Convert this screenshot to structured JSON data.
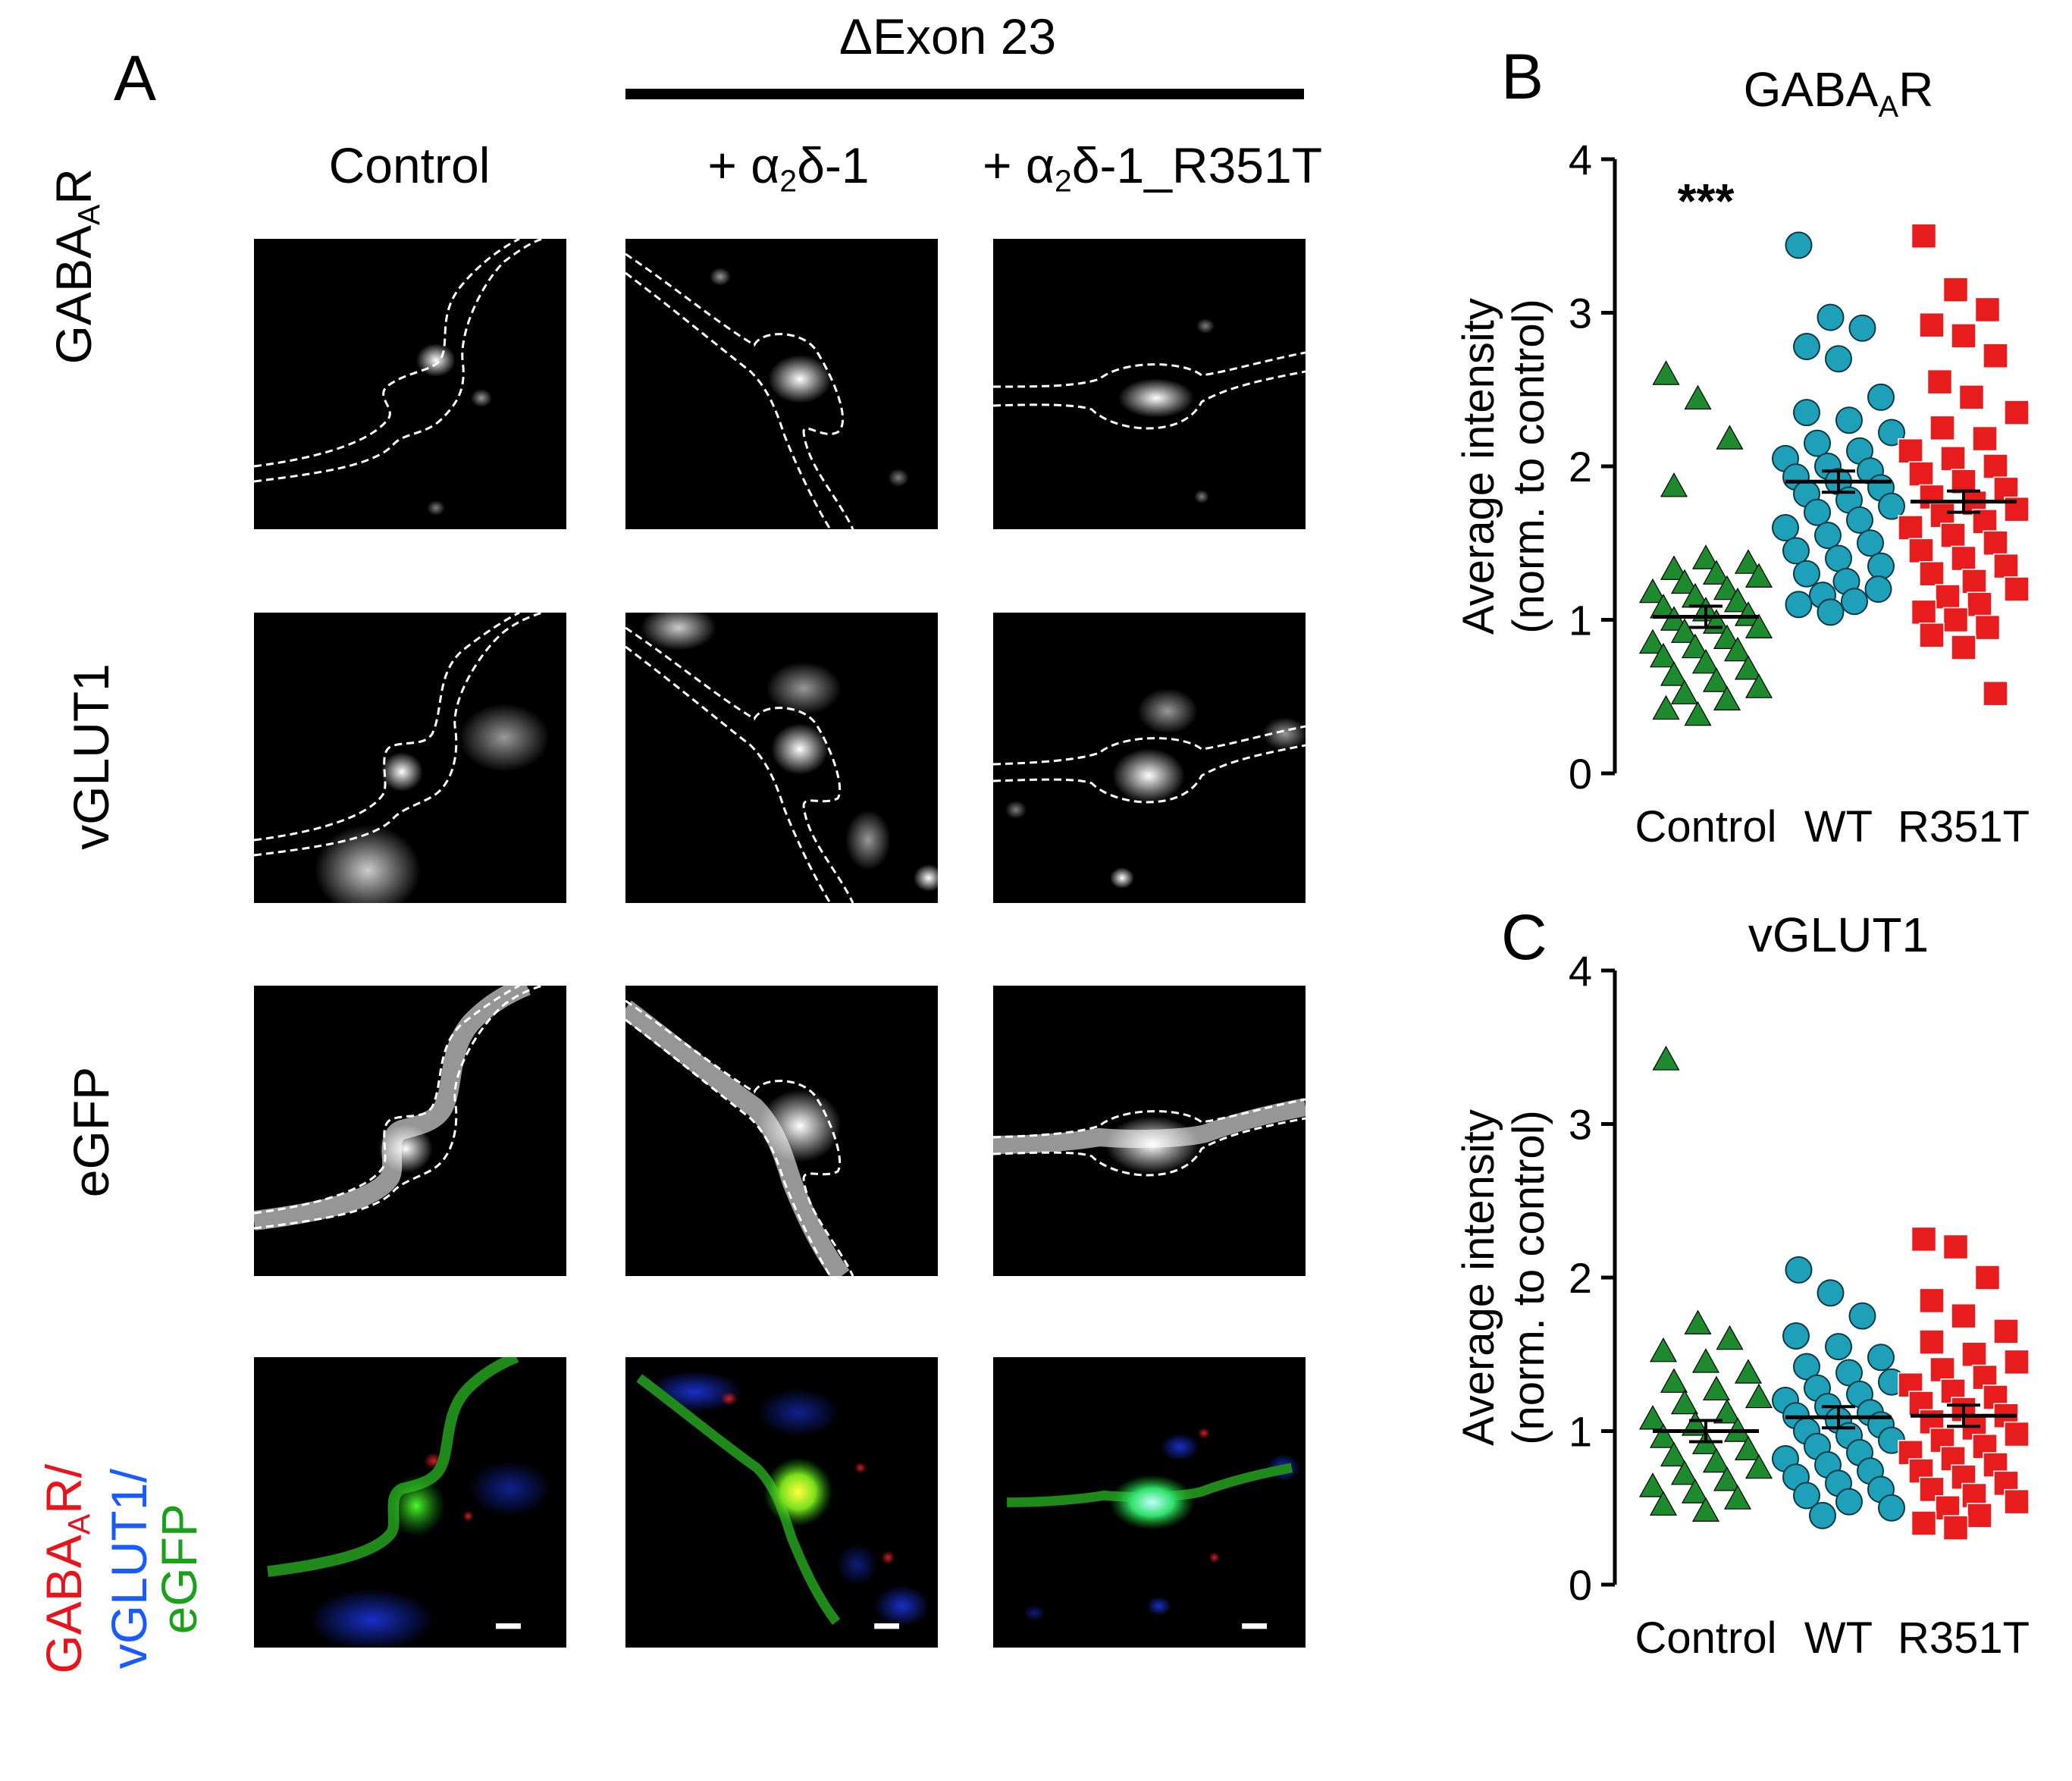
{
  "panel_A": {
    "letter": "A",
    "group_label": "ΔExon 23",
    "columns": {
      "control": "Control",
      "wt_prefix": "+ α",
      "wt_sub": "2",
      "wt_suffix": "δ-1",
      "mut_prefix": "+ α",
      "mut_sub": "2",
      "mut_suffix": "δ-1_R351T"
    },
    "rows": {
      "gaba_main": "GABA",
      "gaba_sub": "A",
      "gaba_end": "R",
      "vglut1": "vGLUT1",
      "egfp": "eGFP",
      "merge_gaba": "GABA",
      "merge_gaba_sub": "A",
      "merge_gaba_end": "R/",
      "merge_vglut": "vGLUT1/",
      "merge_egfp": "eGFP"
    },
    "colors": {
      "red": "#e8141c",
      "blue": "#1a5bff",
      "green": "#1aa01a"
    }
  },
  "chart_data": [
    {
      "panel": "B",
      "type": "scatter",
      "title": "GABAAR",
      "title_main": "GABA",
      "title_sub": "A",
      "title_end": "R",
      "ylabel_line1": "Average intensity",
      "ylabel_line2": "(norm. to control)",
      "categories": [
        "Control",
        "WT",
        "R351T"
      ],
      "ylim": [
        0,
        4
      ],
      "yticks": [
        "0",
        "1",
        "2",
        "3",
        "4"
      ],
      "annotation": "***",
      "means": [
        1.02,
        1.9,
        1.77
      ],
      "series": [
        {
          "category": "Control",
          "marker": "triangle",
          "color": "#1e8a2e",
          "values": [
            2.6,
            2.44,
            2.18,
            1.87,
            1.4,
            1.37,
            1.33,
            1.3,
            1.28,
            1.24,
            1.2,
            1.18,
            1.15,
            1.12,
            1.08,
            1.06,
            1.03,
            1.0,
            0.98,
            0.95,
            0.92,
            0.88,
            0.85,
            0.82,
            0.8,
            0.76,
            0.72,
            0.68,
            0.64,
            0.6,
            0.56,
            0.52,
            0.48,
            0.42,
            0.38
          ]
        },
        {
          "category": "WT",
          "marker": "circle",
          "color": "#1ea0b8",
          "values": [
            3.44,
            2.97,
            2.9,
            2.78,
            2.7,
            2.45,
            2.35,
            2.3,
            2.22,
            2.15,
            2.1,
            2.05,
            2.0,
            1.97,
            1.93,
            1.9,
            1.86,
            1.82,
            1.78,
            1.74,
            1.7,
            1.65,
            1.6,
            1.55,
            1.5,
            1.45,
            1.4,
            1.35,
            1.3,
            1.25,
            1.2,
            1.16,
            1.12,
            1.1,
            1.05
          ]
        },
        {
          "category": "R351T",
          "marker": "square",
          "color": "#e81c1c",
          "values": [
            3.5,
            3.15,
            3.02,
            2.92,
            2.85,
            2.72,
            2.55,
            2.45,
            2.35,
            2.25,
            2.18,
            2.1,
            2.05,
            2.0,
            1.95,
            1.9,
            1.85,
            1.8,
            1.76,
            1.72,
            1.68,
            1.64,
            1.6,
            1.55,
            1.5,
            1.45,
            1.4,
            1.35,
            1.3,
            1.25,
            1.2,
            1.15,
            1.1,
            1.05,
            1.0,
            0.95,
            0.9,
            0.82,
            0.52
          ]
        }
      ]
    },
    {
      "panel": "C",
      "type": "scatter",
      "title": "vGLUT1",
      "ylabel_line1": "Average intensity",
      "ylabel_line2": "(norm. to control)",
      "categories": [
        "Control",
        "WT",
        "R351T"
      ],
      "ylim": [
        0,
        4
      ],
      "yticks": [
        "0",
        "1",
        "2",
        "3",
        "4"
      ],
      "means": [
        1.0,
        1.09,
        1.1
      ],
      "series": [
        {
          "category": "Control",
          "marker": "triangle",
          "color": "#1e8a2e",
          "values": [
            3.42,
            1.7,
            1.6,
            1.52,
            1.45,
            1.38,
            1.32,
            1.27,
            1.22,
            1.18,
            1.12,
            1.08,
            1.04,
            1.0,
            0.96,
            0.92,
            0.88,
            0.84,
            0.8,
            0.76,
            0.72,
            0.68,
            0.64,
            0.6,
            0.56,
            0.52,
            0.48
          ]
        },
        {
          "category": "WT",
          "marker": "circle",
          "color": "#1ea0b8",
          "values": [
            2.05,
            1.9,
            1.75,
            1.62,
            1.55,
            1.48,
            1.42,
            1.38,
            1.32,
            1.28,
            1.24,
            1.2,
            1.16,
            1.12,
            1.1,
            1.07,
            1.04,
            1.0,
            0.97,
            0.94,
            0.9,
            0.86,
            0.82,
            0.78,
            0.74,
            0.7,
            0.66,
            0.62,
            0.58,
            0.54,
            0.5,
            0.45
          ]
        },
        {
          "category": "R351T",
          "marker": "square",
          "color": "#e81c1c",
          "values": [
            2.25,
            2.2,
            2.0,
            1.85,
            1.75,
            1.65,
            1.58,
            1.5,
            1.45,
            1.4,
            1.35,
            1.3,
            1.26,
            1.22,
            1.18,
            1.14,
            1.1,
            1.06,
            1.02,
            0.98,
            0.94,
            0.9,
            0.86,
            0.82,
            0.78,
            0.74,
            0.7,
            0.66,
            0.62,
            0.58,
            0.54,
            0.5,
            0.45,
            0.4,
            0.37
          ]
        }
      ]
    }
  ]
}
